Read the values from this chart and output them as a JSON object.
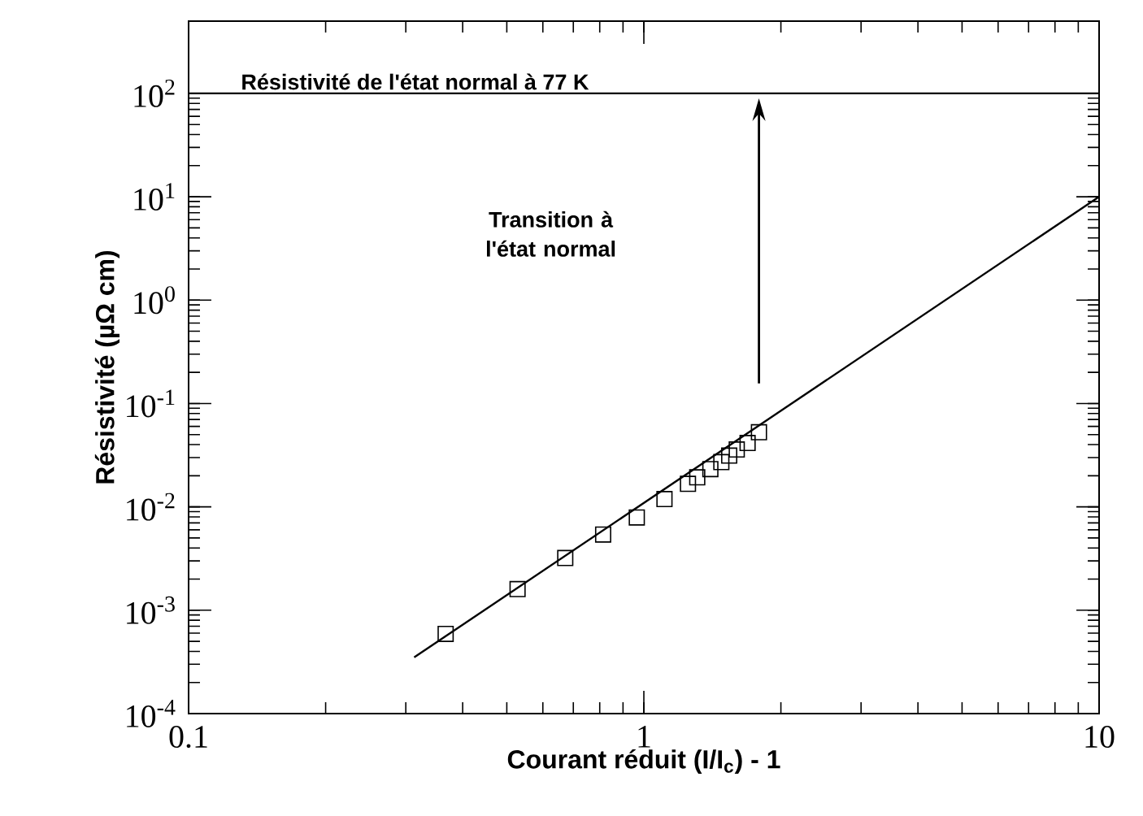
{
  "chart_data": {
    "type": "scatter",
    "xlabel": "Courant réduit (I/I$_{c}$) - 1",
    "ylabel": "Résistivité (µΩ cm)",
    "log": "xy",
    "xlim": [
      0.1,
      10
    ],
    "ylim": [
      0.0001,
      500
    ],
    "xticks": [
      {
        "value": 0.1,
        "label": "0.1"
      },
      {
        "value": 1,
        "label": "1"
      },
      {
        "value": 10,
        "label": "10"
      }
    ],
    "yticks": [
      {
        "value": 0.0001,
        "label": "10$^{-4}$"
      },
      {
        "value": 0.001,
        "label": "10$^{-3}$"
      },
      {
        "value": 0.01,
        "label": "10$^{-2}$"
      },
      {
        "value": 0.1,
        "label": "10$^{-1}$"
      },
      {
        "value": 1,
        "label": "10$^{0}$"
      },
      {
        "value": 10,
        "label": "10$^{1}$"
      },
      {
        "value": 100,
        "label": "10$^{2}$"
      }
    ],
    "grid": false,
    "series": [
      {
        "marker": "square",
        "color": "#000000",
        "x": [
          0.367,
          0.528,
          0.672,
          0.814,
          0.965,
          1.11,
          1.25,
          1.31,
          1.4,
          1.48,
          1.54,
          1.6,
          1.69,
          1.79
        ],
        "values": [
          0.00059,
          0.0016,
          0.0032,
          0.0054,
          0.0079,
          0.0119,
          0.0167,
          0.0193,
          0.0232,
          0.0271,
          0.0313,
          0.0359,
          0.0415,
          0.0527
        ]
      },
      {
        "type": "line",
        "marker": "none",
        "line_style": "solid",
        "color": "#000000",
        "x": [
          0.313,
          10
        ],
        "values": [
          0.00035,
          10
        ]
      }
    ],
    "ref_lines": [
      {
        "axis": "y",
        "value": 100,
        "label": "Résistivité de l'état normal à 77 K",
        "color": "#000000"
      }
    ],
    "annotations": [
      "Transition à l'état normal"
    ]
  }
}
